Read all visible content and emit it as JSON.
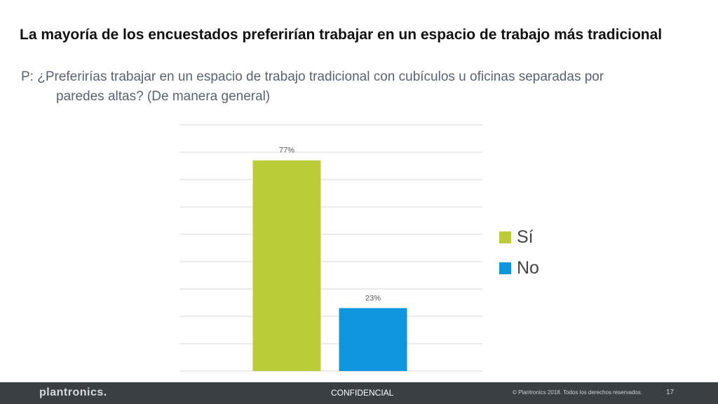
{
  "slide": {
    "title": "La mayoría de los encuestados preferirían trabajar en un espacio de trabajo más tradicional",
    "question_line1": "P: ¿Preferirías trabajar en un espacio de trabajo tradicional con cubículos u oficinas separadas por",
    "question_line2": "paredes altas? (De manera general)"
  },
  "chart_data": {
    "type": "bar",
    "categories": [
      "Sí",
      "No"
    ],
    "values": [
      77,
      23
    ],
    "value_labels": [
      "77%",
      "23%"
    ],
    "colors": [
      "#bccb38",
      "#0e95db"
    ],
    "ylim": [
      0,
      90
    ],
    "grid": true,
    "legend_position": "right",
    "legend": [
      "Sí",
      "No"
    ]
  },
  "footer": {
    "logo": "plantronics.",
    "confidential": "CONFIDENCIAL",
    "copyright": "© Plantronics 2018. Todos los derechos reservados.",
    "page_number": "17"
  }
}
